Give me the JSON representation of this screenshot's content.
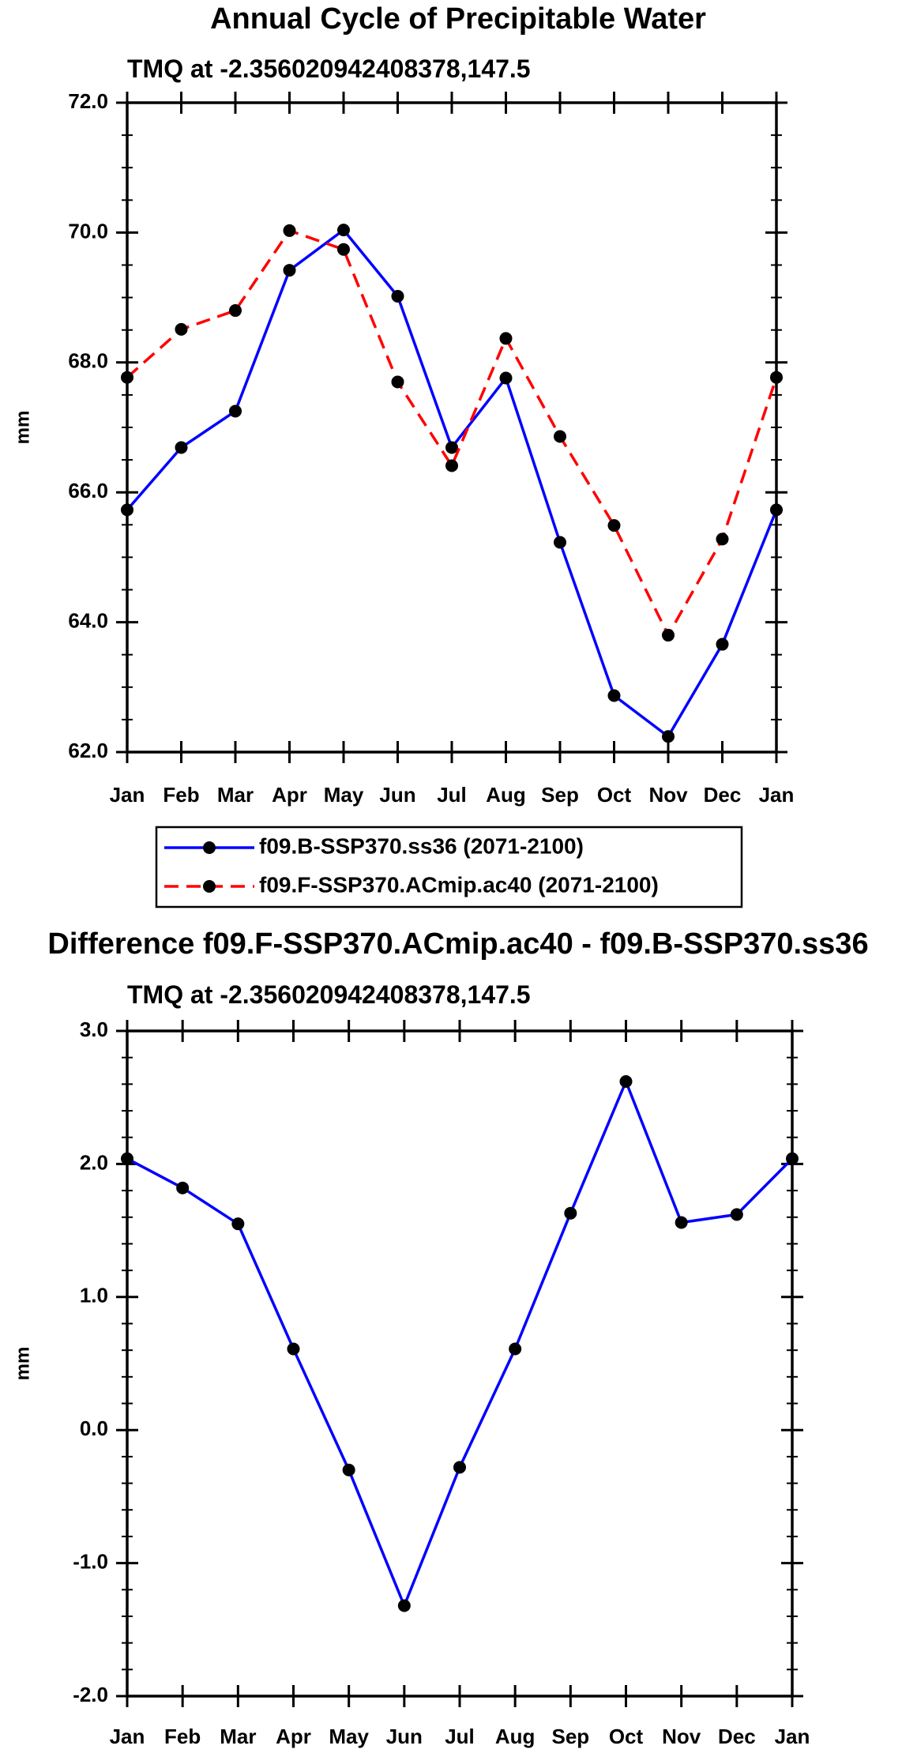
{
  "chart_data": [
    {
      "type": "line",
      "title": "Annual Cycle of Precipitable Water",
      "subtitle": "TMQ at -2.356020942408378,147.5",
      "xlabel": "",
      "ylabel": "mm",
      "categories": [
        "Jan",
        "Feb",
        "Mar",
        "Apr",
        "May",
        "Jun",
        "Jul",
        "Aug",
        "Sep",
        "Oct",
        "Nov",
        "Dec",
        "Jan"
      ],
      "ylim": [
        62.0,
        72.0
      ],
      "yticks": [
        62.0,
        64.0,
        66.0,
        68.0,
        70.0,
        72.0
      ],
      "ytick_labels": [
        "62.0",
        "64.0",
        "66.0",
        "68.0",
        "70.0",
        "72.0"
      ],
      "minor_step": 0.5,
      "series": [
        {
          "name": "f09.B-SSP370.ss36 (2071-2100)",
          "color": "#0000ff",
          "dash": "solid",
          "values": [
            65.73,
            66.69,
            67.25,
            69.42,
            70.04,
            69.02,
            66.69,
            67.76,
            65.23,
            62.87,
            62.24,
            63.66,
            65.73
          ]
        },
        {
          "name": "f09.F-SSP370.ACmip.ac40 (2071-2100)",
          "color": "#ff0000",
          "dash": "dashed",
          "values": [
            67.77,
            68.51,
            68.8,
            70.03,
            69.74,
            67.7,
            66.41,
            68.37,
            66.86,
            65.49,
            63.8,
            65.28,
            67.77
          ]
        }
      ],
      "legend": [
        "f09.B-SSP370.ss36 (2071-2100)",
        "f09.F-SSP370.ACmip.ac40 (2071-2100)"
      ]
    },
    {
      "type": "line",
      "title": "Difference f09.F-SSP370.ACmip.ac40 - f09.B-SSP370.ss36",
      "subtitle": "TMQ at -2.356020942408378,147.5",
      "xlabel": "",
      "ylabel": "mm",
      "categories": [
        "Jan",
        "Feb",
        "Mar",
        "Apr",
        "May",
        "Jun",
        "Jul",
        "Aug",
        "Sep",
        "Oct",
        "Nov",
        "Dec",
        "Jan"
      ],
      "ylim": [
        -2.0,
        3.0
      ],
      "yticks": [
        -2.0,
        -1.0,
        0.0,
        1.0,
        2.0,
        3.0
      ],
      "ytick_labels": [
        "-2.0",
        "-1.0",
        "0.0",
        "1.0",
        "2.0",
        "3.0"
      ],
      "minor_step": 0.2,
      "series": [
        {
          "name": "difference",
          "color": "#0000ff",
          "dash": "solid",
          "values": [
            2.04,
            1.82,
            1.55,
            0.61,
            -0.3,
            -1.32,
            -0.28,
            0.61,
            1.63,
            2.62,
            1.56,
            1.62,
            2.04
          ]
        }
      ]
    }
  ]
}
